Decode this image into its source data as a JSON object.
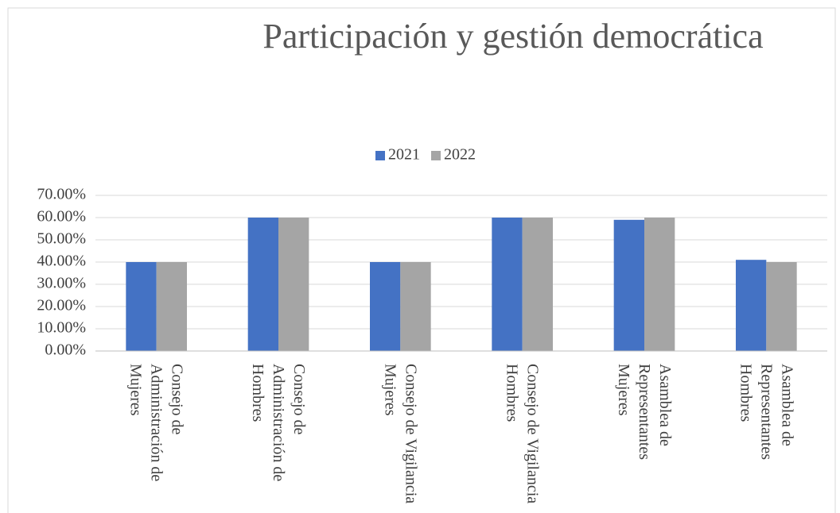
{
  "chart_data": {
    "type": "bar",
    "title": "Participación y gestión democrática",
    "categories": [
      "Consejo de Administración de Mujeres",
      "Consejo de Administración de Hombres",
      "Consejo de Vigilancia Mujeres",
      "Consejo de Vigilancia Hombres",
      "Asamblea de Representantes Mujeres",
      "Asamblea de Representantes Hombres"
    ],
    "series": [
      {
        "name": "2021",
        "color": "#4472c4",
        "values": [
          40,
          60,
          40,
          60,
          59,
          41
        ]
      },
      {
        "name": "2022",
        "color": "#a5a5a5",
        "values": [
          40,
          60,
          40,
          60,
          60,
          40
        ]
      }
    ],
    "ylim": [
      0,
      70
    ],
    "yticks": [
      {
        "value": 0,
        "label": "0.00%"
      },
      {
        "value": 10,
        "label": "10.00%"
      },
      {
        "value": 20,
        "label": "20.00%"
      },
      {
        "value": 30,
        "label": "30.00%"
      },
      {
        "value": 40,
        "label": "40.00%"
      },
      {
        "value": 50,
        "label": "50.00%"
      },
      {
        "value": 60,
        "label": "60.00%"
      },
      {
        "value": 70,
        "label": "70.00%"
      }
    ],
    "grid": true,
    "legend": "top"
  }
}
